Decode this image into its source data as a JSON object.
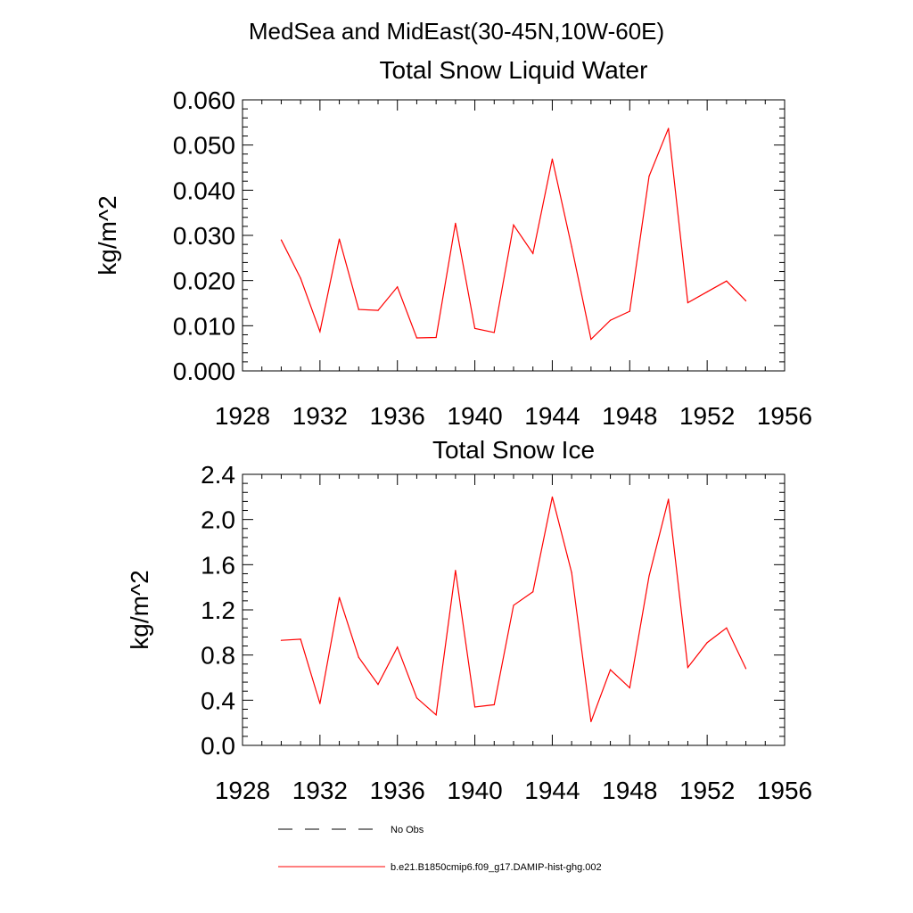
{
  "figure": {
    "title": "MedSea and MidEast(30-45N,10W-60E)"
  },
  "legend": {
    "entries": [
      {
        "label": "No Obs",
        "color": "#000000",
        "style": "dashed"
      },
      {
        "label": "b.e21.B1850cmip6.f09_g17.DAMIP-hist-ghg.002",
        "color": "#ff0000",
        "style": "solid"
      }
    ]
  },
  "chart_data": [
    {
      "type": "line",
      "title": "Total Snow Liquid Water",
      "ylabel": "kg/m^2",
      "xlabel": "",
      "xlim": [
        1928,
        1956
      ],
      "ylim": [
        0,
        0.06
      ],
      "xticks": [
        "1928",
        "1932",
        "1936",
        "1940",
        "1944",
        "1948",
        "1952",
        "1956"
      ],
      "yticks": [
        "0.000",
        "0.010",
        "0.020",
        "0.030",
        "0.040",
        "0.050",
        "0.060"
      ],
      "grid": false,
      "series": [
        {
          "name": "b.e21.B1850cmip6.f09_g17.DAMIP-hist-ghg.002",
          "color": "#ff0000",
          "x": [
            1930,
            1931,
            1932,
            1933,
            1934,
            1935,
            1936,
            1937,
            1938,
            1939,
            1940,
            1941,
            1942,
            1943,
            1944,
            1945,
            1946,
            1947,
            1948,
            1949,
            1950,
            1951,
            1952,
            1953,
            1954
          ],
          "values": [
            0.029,
            0.0205,
            0.0087,
            0.0292,
            0.0136,
            0.0134,
            0.0186,
            0.0073,
            0.0074,
            0.0327,
            0.0094,
            0.0085,
            0.0323,
            0.026,
            0.0469,
            0.0275,
            0.007,
            0.0112,
            0.0132,
            0.0431,
            0.0537,
            0.0151,
            0.0175,
            0.0199,
            0.0155
          ]
        }
      ]
    },
    {
      "type": "line",
      "title": "Total Snow Ice",
      "ylabel": "kg/m^2",
      "xlabel": "",
      "xlim": [
        1928,
        1956
      ],
      "ylim": [
        0,
        2.4
      ],
      "xticks": [
        "1928",
        "1932",
        "1936",
        "1940",
        "1944",
        "1948",
        "1952",
        "1956"
      ],
      "yticks": [
        "0.0",
        "0.4",
        "0.8",
        "1.2",
        "1.6",
        "2.0",
        "2.4"
      ],
      "grid": false,
      "series": [
        {
          "name": "b.e21.B1850cmip6.f09_g17.DAMIP-hist-ghg.002",
          "color": "#ff0000",
          "x": [
            1930,
            1931,
            1932,
            1933,
            1934,
            1935,
            1936,
            1937,
            1938,
            1939,
            1940,
            1941,
            1942,
            1943,
            1944,
            1945,
            1946,
            1947,
            1948,
            1949,
            1950,
            1951,
            1952,
            1953,
            1954
          ],
          "values": [
            0.93,
            0.94,
            0.37,
            1.31,
            0.78,
            0.54,
            0.87,
            0.42,
            0.27,
            1.55,
            0.34,
            0.36,
            1.24,
            1.36,
            2.2,
            1.53,
            0.21,
            0.67,
            0.51,
            1.5,
            2.18,
            0.69,
            0.91,
            1.04,
            0.68
          ]
        }
      ]
    }
  ]
}
